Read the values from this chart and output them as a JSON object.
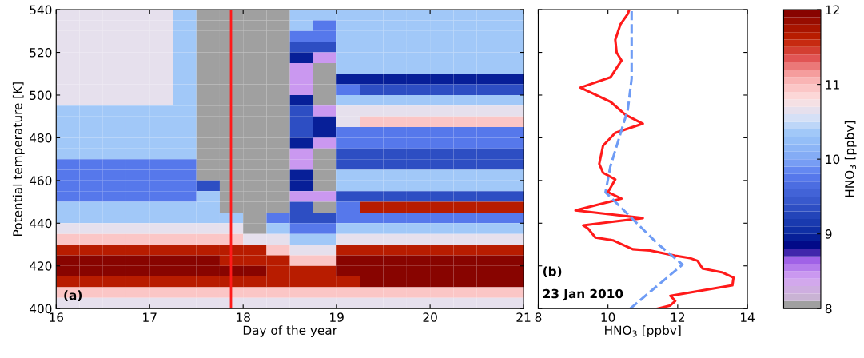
{
  "chart_data": [
    {
      "type": "heatmap",
      "xlabel": "Day of the year",
      "ylabel": "Potential temperature [K]",
      "clabel": "HNO$_{3}$ [ppbv]",
      "xlim": [
        16,
        21
      ],
      "xticks": [
        16,
        17,
        18,
        19,
        20,
        21
      ],
      "ylim": [
        400,
        540
      ],
      "yticks": [
        400,
        420,
        440,
        460,
        480,
        500,
        520,
        540
      ],
      "clim": [
        8,
        12
      ],
      "cticks": [
        8,
        9,
        10,
        11,
        12
      ],
      "ref_lines": [
        {
          "axis": "x",
          "value": 17.87,
          "color": "#ff1a1a"
        }
      ],
      "annotations": [
        "(a)"
      ],
      "cells": [
        [
          10.6,
          10.6,
          10.6,
          10.6,
          10.6,
          10.3,
          8,
          8,
          8,
          8,
          10.3,
          10.3,
          10.3,
          10.3,
          10.3,
          10.3,
          10.3,
          10.3,
          10.3,
          10.3
        ],
        [
          10.6,
          10.6,
          10.6,
          10.6,
          10.6,
          10.3,
          8,
          8,
          8,
          8,
          10.3,
          9.7,
          10.3,
          10.3,
          10.3,
          10.3,
          10.3,
          10.3,
          10.3,
          10.3
        ],
        [
          10.6,
          10.6,
          10.6,
          10.6,
          10.6,
          10.3,
          8,
          8,
          8,
          8,
          9.7,
          9.7,
          10.3,
          10.3,
          10.3,
          10.3,
          10.3,
          10.3,
          10.3,
          10.3
        ],
        [
          10.6,
          10.6,
          10.6,
          10.6,
          10.6,
          10.3,
          8,
          8,
          8,
          8,
          9.3,
          9.3,
          10.3,
          10.3,
          10.3,
          10.3,
          10.3,
          10.3,
          10.3,
          10.3
        ],
        [
          10.6,
          10.6,
          10.6,
          10.6,
          10.6,
          10.3,
          8,
          8,
          8,
          8,
          8.9,
          8.4,
          10.3,
          10.3,
          10.3,
          10.3,
          10.3,
          10.3,
          10.3,
          10.3
        ],
        [
          10.6,
          10.6,
          10.6,
          10.6,
          10.6,
          10.3,
          8,
          8,
          8,
          8,
          8.4,
          8,
          10.3,
          10.3,
          10.3,
          10.3,
          10.3,
          10.3,
          10.3,
          10.3
        ],
        [
          10.6,
          10.6,
          10.6,
          10.6,
          10.6,
          10.3,
          8,
          8,
          8,
          8,
          8.4,
          8,
          8.9,
          8.9,
          8.9,
          8.9,
          8.9,
          8.9,
          8.9,
          8.9
        ],
        [
          10.6,
          10.6,
          10.6,
          10.6,
          10.6,
          10.3,
          8,
          8,
          8,
          8,
          8.4,
          8,
          9.7,
          9.3,
          9.3,
          9.3,
          9.3,
          9.3,
          9.3,
          9.3
        ],
        [
          10.6,
          10.6,
          10.6,
          10.6,
          10.6,
          10.3,
          8,
          8,
          8,
          8,
          8.9,
          8,
          10.3,
          10.3,
          10.3,
          10.3,
          10.3,
          10.3,
          10.3,
          10.3
        ],
        [
          10.3,
          10.3,
          10.3,
          10.3,
          10.3,
          10.3,
          8,
          8,
          8,
          8,
          9.3,
          8.4,
          10.6,
          10.6,
          10.6,
          10.6,
          10.6,
          10.6,
          10.6,
          10.6
        ],
        [
          10.3,
          10.3,
          10.3,
          10.3,
          10.3,
          10.3,
          8,
          8,
          8,
          8,
          9.3,
          8.9,
          10.6,
          10.9,
          10.9,
          10.9,
          10.9,
          10.9,
          10.9,
          10.9
        ],
        [
          10.3,
          10.3,
          10.3,
          10.3,
          10.3,
          10.3,
          8,
          8,
          8,
          8,
          9.3,
          8.9,
          9.7,
          9.7,
          9.7,
          9.7,
          9.7,
          9.7,
          9.7,
          9.7
        ],
        [
          10.3,
          10.3,
          10.3,
          10.3,
          10.3,
          10.3,
          8,
          8,
          8,
          8,
          8.9,
          8.4,
          9.7,
          9.7,
          9.7,
          9.7,
          9.7,
          9.7,
          9.7,
          9.7
        ],
        [
          10.3,
          10.3,
          10.3,
          10.3,
          10.3,
          10.3,
          8,
          8,
          8,
          8,
          8.4,
          8,
          9.3,
          9.3,
          9.3,
          9.3,
          9.3,
          9.3,
          9.3,
          9.3
        ],
        [
          9.7,
          9.7,
          9.7,
          9.7,
          9.7,
          9.7,
          8,
          8,
          8,
          8,
          8.4,
          8,
          9.3,
          9.3,
          9.3,
          9.3,
          9.3,
          9.3,
          9.3,
          9.3
        ],
        [
          9.7,
          9.7,
          9.7,
          9.7,
          9.7,
          9.7,
          8,
          8,
          8,
          8,
          8.9,
          8,
          10.3,
          10.3,
          10.3,
          10.3,
          10.3,
          10.3,
          10.3,
          10.3
        ],
        [
          9.7,
          9.7,
          9.7,
          9.7,
          9.7,
          9.7,
          9.3,
          8,
          8,
          8,
          8.9,
          8,
          10.3,
          10.3,
          10.3,
          10.3,
          10.3,
          10.3,
          10.3,
          10.3
        ],
        [
          9.7,
          9.7,
          9.7,
          9.7,
          9.7,
          9.7,
          10.3,
          8,
          8,
          8,
          8.4,
          8.4,
          9.3,
          9.3,
          9.3,
          9.3,
          9.3,
          9.3,
          9.3,
          9.3
        ],
        [
          10.3,
          10.3,
          10.3,
          10.3,
          10.3,
          10.3,
          10.3,
          8,
          8,
          8,
          9.3,
          8,
          9.7,
          11.6,
          11.6,
          11.6,
          11.6,
          11.6,
          11.6,
          11.6
        ],
        [
          10.3,
          10.3,
          10.3,
          10.3,
          10.3,
          10.3,
          10.3,
          10.3,
          8,
          9.7,
          9.3,
          9.3,
          9.7,
          9.7,
          9.7,
          9.7,
          9.7,
          9.7,
          9.7,
          9.7
        ],
        [
          10.6,
          10.6,
          10.6,
          10.6,
          10.6,
          10.6,
          10.6,
          10.6,
          8,
          10.3,
          9.7,
          9.7,
          10.3,
          10.3,
          10.3,
          10.3,
          10.3,
          10.3,
          10.3,
          10.3
        ],
        [
          10.9,
          10.9,
          10.9,
          10.9,
          10.9,
          10.9,
          10.9,
          10.9,
          10.6,
          10.6,
          10.3,
          10.3,
          10.6,
          10.6,
          10.6,
          10.6,
          10.6,
          10.6,
          10.6,
          10.6
        ],
        [
          11.6,
          11.6,
          11.6,
          11.6,
          11.6,
          11.6,
          11.6,
          11.6,
          11.6,
          10.9,
          10.6,
          10.6,
          11.6,
          11.6,
          11.6,
          11.6,
          11.6,
          11.6,
          11.6,
          11.6
        ],
        [
          11.9,
          11.9,
          11.9,
          11.9,
          11.9,
          11.9,
          11.9,
          11.6,
          11.6,
          11.6,
          10.9,
          10.9,
          11.9,
          11.9,
          11.9,
          11.9,
          11.9,
          11.9,
          11.9,
          11.9
        ],
        [
          11.9,
          11.9,
          11.9,
          11.9,
          11.9,
          11.9,
          11.9,
          11.9,
          11.9,
          11.6,
          11.6,
          11.6,
          11.9,
          11.9,
          11.9,
          11.9,
          11.9,
          11.9,
          11.9,
          11.9
        ],
        [
          11.6,
          11.6,
          11.6,
          11.6,
          11.6,
          11.6,
          11.6,
          11.6,
          11.6,
          11.6,
          11.6,
          11.6,
          11.6,
          11.9,
          11.9,
          11.9,
          11.9,
          11.9,
          11.9,
          11.9
        ],
        [
          10.9,
          10.9,
          10.9,
          10.9,
          10.9,
          10.9,
          10.9,
          10.9,
          10.9,
          10.9,
          10.9,
          10.9,
          10.9,
          10.9,
          10.9,
          10.9,
          10.9,
          10.9,
          10.9,
          10.9
        ],
        [
          10.6,
          10.6,
          10.6,
          10.6,
          10.6,
          10.6,
          10.6,
          10.6,
          10.6,
          10.6,
          10.6,
          10.6,
          10.6,
          10.6,
          10.6,
          10.6,
          10.6,
          10.6,
          10.6,
          10.6
        ]
      ]
    },
    {
      "type": "line",
      "xlabel": "HNO$_{3}$ [ppbv]",
      "xlim": [
        8,
        14
      ],
      "xticks": [
        8,
        10,
        12,
        14
      ],
      "ylim": [
        400,
        540
      ],
      "yticks": [
        400,
        420,
        440,
        460,
        480,
        500,
        520,
        540
      ],
      "tick_labels": "x",
      "annotations": [
        "(b)",
        "23 Jan 2010"
      ],
      "series": [
        {
          "color": "#ff1a1a",
          "line_style": "solid",
          "x": [
            11.43,
            11.79,
            11.93,
            11.79,
            13.57,
            13.6,
            13.29,
            12.71,
            12.57,
            12.36,
            11.93,
            11.21,
            10.71,
            10.14,
            9.64,
            9.43,
            9.29,
            11.0,
            9.07,
            10.39,
            10.0,
            10.21,
            9.86,
            9.75,
            9.86,
            10.21,
            11.0,
            10.5,
            10.07,
            9.21,
            10.07,
            10.39,
            10.25,
            10.21,
            10.36,
            10.57,
            10.61
          ],
          "values": [
            400,
            401.5,
            403.6,
            406,
            410.9,
            414.5,
            416.9,
            418.8,
            422.4,
            423.6,
            424.8,
            427.2,
            427.8,
            432,
            433.3,
            437.5,
            439,
            442.4,
            446,
            451.5,
            454.5,
            460.5,
            463.6,
            467.8,
            476.3,
            482.3,
            486.6,
            490.8,
            496.9,
            503.5,
            508.3,
            516.2,
            519.9,
            525.9,
            533.2,
            538,
            540
          ]
        },
        {
          "color": "#6f9cf5",
          "line_style": "dashed",
          "x": [
            10.64,
            11.43,
            12.14,
            11.43,
            9.93,
            10.07,
            10.57,
            10.68,
            10.68
          ],
          "values": [
            400,
            410.9,
            420.6,
            430.3,
            454.5,
            466.6,
            493.2,
            507.7,
            540
          ]
        }
      ]
    }
  ]
}
